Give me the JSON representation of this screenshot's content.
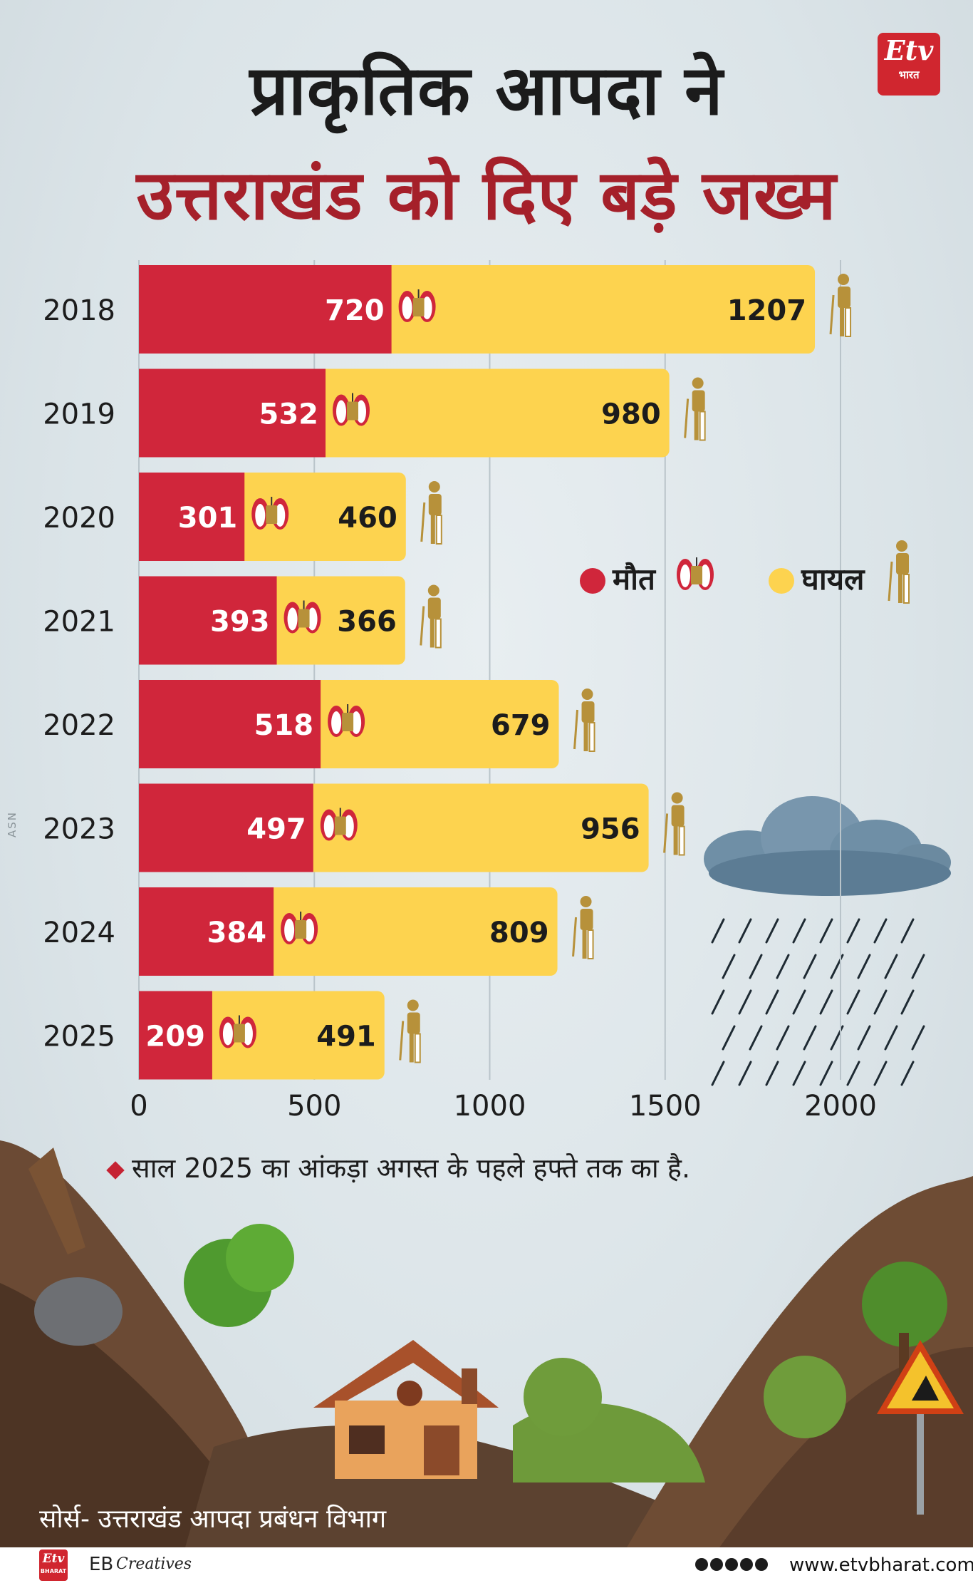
{
  "title_line1": "प्राकृतिक आपदा ने",
  "title_line2": "उत्तराखंड को दिए बड़े जख्म",
  "logo": {
    "text": "Etv",
    "sub": "भारत"
  },
  "colors": {
    "deaths": "#d0263b",
    "injured": "#fdd34f",
    "title_red": "#a5202a",
    "icon_gold": "#b7913a"
  },
  "chart_data": {
    "type": "bar",
    "orientation": "horizontal",
    "stacked": true,
    "categories": [
      "2018",
      "2019",
      "2020",
      "2021",
      "2022",
      "2023",
      "2024",
      "2025"
    ],
    "series": [
      {
        "name": "मौत",
        "values": [
          720,
          532,
          301,
          393,
          518,
          497,
          384,
          209
        ]
      },
      {
        "name": "घायल",
        "values": [
          1207,
          980,
          460,
          366,
          679,
          956,
          809,
          491
        ]
      }
    ],
    "xticks": [
      "0",
      "500",
      "1000",
      "1500",
      "2000"
    ],
    "xlim": [
      0,
      2000
    ],
    "grid": "vertical",
    "legend_position": "right-middle"
  },
  "note": "साल 2025 का आंकड़ा अगस्त के पहले हफ्ते तक का है.",
  "source": "सोर्स- उत्तराखंड आपदा प्रबंधन विभाग",
  "side_code": "ASN",
  "footer": {
    "logo_text": "Etv",
    "logo_sub": "BHARAT",
    "brand_eb": "EB",
    "brand_creatives": "Creatives",
    "website": "www.etvbharat.com"
  }
}
